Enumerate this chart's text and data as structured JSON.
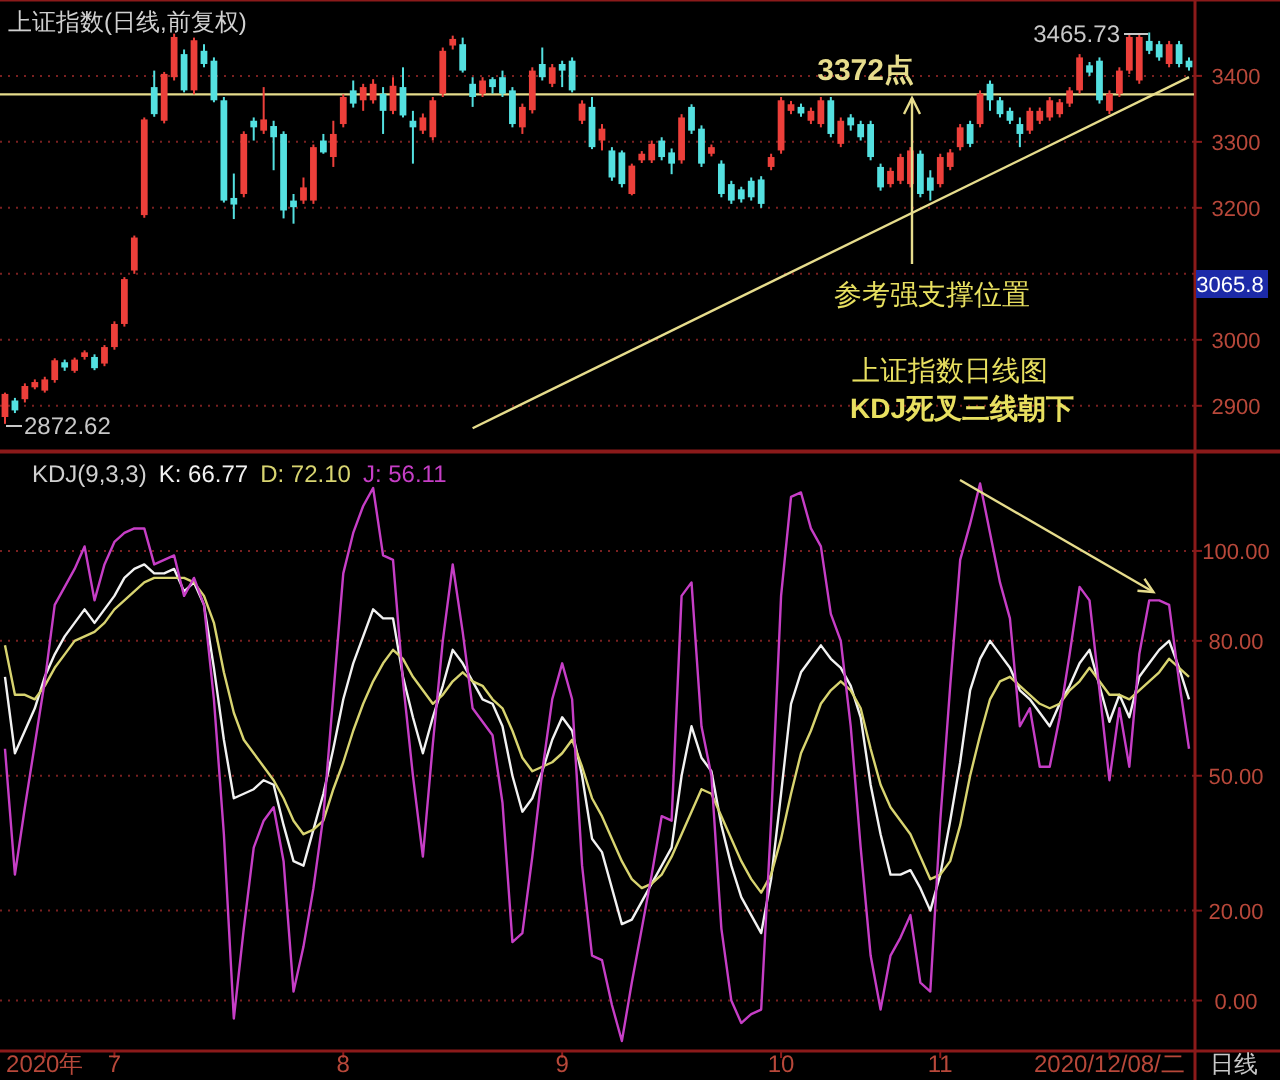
{
  "chart_data": [
    {
      "type": "candlestick",
      "title": "上证指数(日线,前复权)",
      "categories": [
        null,
        null,
        null,
        null,
        null,
        null,
        null,
        null,
        null,
        null,
        null,
        null,
        null,
        null,
        null,
        null,
        null,
        null,
        null,
        null,
        null,
        null,
        null,
        null,
        null,
        null,
        null,
        null,
        null,
        null,
        null,
        null,
        null,
        null,
        null,
        null,
        null,
        null,
        null,
        null,
        null,
        null,
        null,
        null,
        null,
        null,
        null,
        null,
        null,
        null,
        null,
        null,
        null,
        null,
        null,
        null,
        null,
        null,
        null,
        null,
        null,
        null,
        null,
        null,
        null,
        null,
        null,
        null,
        null,
        null,
        null,
        null,
        null,
        null,
        null,
        null,
        null,
        null,
        null,
        null,
        null,
        null,
        null,
        null,
        null,
        null,
        null,
        null,
        null,
        null,
        null,
        null,
        null,
        null,
        null,
        null,
        null,
        null,
        null,
        null,
        null,
        null,
        null,
        null,
        null,
        null,
        null,
        null,
        null,
        null,
        null,
        null,
        null,
        null,
        null,
        null,
        null,
        null,
        null,
        null
      ],
      "ohlc": [
        [
          2883,
          2920,
          2872.62,
          2918
        ],
        [
          2908,
          2912,
          2889,
          2893
        ],
        [
          2910,
          2934,
          2905,
          2930
        ],
        [
          2928,
          2940,
          2925,
          2936
        ],
        [
          2923,
          2944,
          2920,
          2940
        ],
        [
          2939,
          2972,
          2935,
          2969
        ],
        [
          2966,
          2970,
          2953,
          2958
        ],
        [
          2953,
          2973,
          2950,
          2970
        ],
        [
          2974,
          2984,
          2970,
          2981
        ],
        [
          2974,
          2978,
          2954,
          2957
        ],
        [
          2964,
          2992,
          2960,
          2989
        ],
        [
          2989,
          3028,
          2985,
          3024
        ],
        [
          3024,
          3095,
          3020,
          3092
        ],
        [
          3105,
          3158,
          3100,
          3155
        ],
        [
          3189,
          3337,
          3185,
          3334
        ],
        [
          3383,
          3408,
          3338,
          3342
        ],
        [
          3332,
          3406,
          3328,
          3403
        ],
        [
          3398,
          3464,
          3393,
          3459
        ],
        [
          3433,
          3440,
          3375,
          3378
        ],
        [
          3378,
          3458,
          3372,
          3454
        ],
        [
          3438,
          3448,
          3413,
          3418
        ],
        [
          3423,
          3428,
          3360,
          3363
        ],
        [
          3363,
          3368,
          3208,
          3211
        ],
        [
          3215,
          3252,
          3183,
          3205
        ],
        [
          3221,
          3316,
          3216,
          3312
        ],
        [
          3332,
          3337,
          3302,
          3322
        ],
        [
          3317,
          3383,
          3312,
          3334
        ],
        [
          3324,
          3332,
          3257,
          3307
        ],
        [
          3312,
          3316,
          3184,
          3196
        ],
        [
          3211,
          3221,
          3176,
          3201
        ],
        [
          3211,
          3246,
          3206,
          3231
        ],
        [
          3211,
          3296,
          3206,
          3292
        ],
        [
          3302,
          3312,
          3282,
          3284
        ],
        [
          3277,
          3332,
          3262,
          3312
        ],
        [
          3327,
          3372,
          3322,
          3368
        ],
        [
          3378,
          3393,
          3352,
          3358
        ],
        [
          3363,
          3388,
          3347,
          3383
        ],
        [
          3363,
          3395,
          3358,
          3388
        ],
        [
          3373,
          3383,
          3312,
          3347
        ],
        [
          3347,
          3398,
          3342,
          3385
        ],
        [
          3383,
          3413,
          3337,
          3340
        ],
        [
          3332,
          3347,
          3267,
          3322
        ],
        [
          3317,
          3343,
          3312,
          3337
        ],
        [
          3307,
          3368,
          3302,
          3363
        ],
        [
          3373,
          3443,
          3368,
          3438
        ],
        [
          3446,
          3461,
          3440,
          3456
        ],
        [
          3448,
          3458,
          3405,
          3408
        ],
        [
          3388,
          3398,
          3353,
          3368
        ],
        [
          3373,
          3398,
          3368,
          3393
        ],
        [
          3395,
          3398,
          3373,
          3383
        ],
        [
          3398,
          3408,
          3368,
          3373
        ],
        [
          3378,
          3383,
          3322,
          3327
        ],
        [
          3322,
          3358,
          3312,
          3353
        ],
        [
          3348,
          3413,
          3343,
          3408
        ],
        [
          3418,
          3443,
          3393,
          3398
        ],
        [
          3388,
          3418,
          3383,
          3413
        ],
        [
          3418,
          3423,
          3383,
          3408
        ],
        [
          3423,
          3428,
          3375,
          3378
        ],
        [
          3332,
          3363,
          3327,
          3358
        ],
        [
          3353,
          3368,
          3289,
          3292
        ],
        [
          3302,
          3327,
          3287,
          3320
        ],
        [
          3287,
          3292,
          3241,
          3246
        ],
        [
          3284,
          3287,
          3231,
          3236
        ],
        [
          3221,
          3267,
          3219,
          3264
        ],
        [
          3272,
          3286,
          3268,
          3282
        ],
        [
          3272,
          3302,
          3268,
          3297
        ],
        [
          3302,
          3307,
          3272,
          3277
        ],
        [
          3284,
          3290,
          3251,
          3267
        ],
        [
          3272,
          3342,
          3267,
          3337
        ],
        [
          3353,
          3357,
          3312,
          3317
        ],
        [
          3320,
          3325,
          3262,
          3267
        ],
        [
          3282,
          3296,
          3278,
          3292
        ],
        [
          3267,
          3272,
          3216,
          3221
        ],
        [
          3236,
          3241,
          3206,
          3211
        ],
        [
          3228,
          3232,
          3208,
          3213
        ],
        [
          3241,
          3246,
          3211,
          3216
        ],
        [
          3243,
          3248,
          3200,
          3206
        ],
        [
          3262,
          3282,
          3257,
          3277
        ],
        [
          3287,
          3368,
          3282,
          3363
        ],
        [
          3347,
          3362,
          3342,
          3357
        ],
        [
          3353,
          3358,
          3338,
          3343
        ],
        [
          3332,
          3352,
          3327,
          3347
        ],
        [
          3327,
          3368,
          3322,
          3363
        ],
        [
          3363,
          3368,
          3307,
          3312
        ],
        [
          3297,
          3337,
          3292,
          3332
        ],
        [
          3337,
          3342,
          3317,
          3325
        ],
        [
          3327,
          3332,
          3302,
          3307
        ],
        [
          3327,
          3332,
          3272,
          3277
        ],
        [
          3262,
          3267,
          3226,
          3231
        ],
        [
          3236,
          3261,
          3231,
          3256
        ],
        [
          3241,
          3282,
          3236,
          3277
        ],
        [
          3236,
          3292,
          3231,
          3287
        ],
        [
          3282,
          3287,
          3216,
          3221
        ],
        [
          3246,
          3257,
          3211,
          3226
        ],
        [
          3236,
          3282,
          3231,
          3277
        ],
        [
          3262,
          3289,
          3257,
          3284
        ],
        [
          3292,
          3327,
          3287,
          3322
        ],
        [
          3327,
          3332,
          3292,
          3297
        ],
        [
          3327,
          3378,
          3322,
          3373
        ],
        [
          3388,
          3393,
          3347,
          3363
        ],
        [
          3363,
          3368,
          3337,
          3342
        ],
        [
          3347,
          3352,
          3327,
          3332
        ],
        [
          3327,
          3337,
          3292,
          3312
        ],
        [
          3317,
          3352,
          3312,
          3347
        ],
        [
          3332,
          3352,
          3327,
          3347
        ],
        [
          3337,
          3368,
          3332,
          3363
        ],
        [
          3342,
          3365,
          3337,
          3360
        ],
        [
          3358,
          3383,
          3353,
          3378
        ],
        [
          3378,
          3433,
          3373,
          3428
        ],
        [
          3416,
          3421,
          3400,
          3405
        ],
        [
          3423,
          3428,
          3358,
          3363
        ],
        [
          3347,
          3378,
          3342,
          3373
        ],
        [
          3373,
          3413,
          3368,
          3408
        ],
        [
          3408,
          3464,
          3403,
          3459
        ],
        [
          3393,
          3464,
          3388,
          3459
        ],
        [
          3453,
          3465.73,
          3433,
          3438
        ],
        [
          3448,
          3453,
          3423,
          3428
        ],
        [
          3418,
          3453,
          3413,
          3448
        ],
        [
          3448,
          3453,
          3413,
          3418
        ],
        [
          3423,
          3428,
          3408,
          3413
        ]
      ],
      "series": [
        {
          "type": "line",
          "values": [
            null,
            null,
            null,
            null,
            null,
            null,
            null,
            null,
            null,
            null,
            null,
            null,
            null,
            null,
            null,
            null,
            null,
            null,
            null,
            null,
            null,
            null,
            null,
            null,
            null,
            null,
            null,
            null,
            null,
            null,
            null,
            null,
            null,
            null,
            null,
            null,
            null,
            null,
            null,
            null,
            null,
            null,
            null,
            null,
            null,
            null,
            null,
            2866,
            null,
            null,
            null,
            null,
            null,
            null,
            null,
            null,
            null,
            null,
            null,
            null,
            null,
            null,
            null,
            null,
            null,
            null,
            null,
            null,
            null,
            null,
            null,
            null,
            null,
            null,
            null,
            null,
            null,
            null,
            null,
            null,
            null,
            null,
            null,
            null,
            null,
            null,
            null,
            null,
            null,
            null,
            null,
            null,
            null,
            null,
            null,
            null,
            null,
            null,
            null,
            null,
            null,
            null,
            null,
            null,
            null,
            null,
            null,
            null,
            null,
            null,
            null,
            null,
            null,
            null,
            null,
            null,
            null,
            null,
            null,
            3398
          ],
          "color": "#e6dc8c"
        }
      ],
      "ylim": [
        2833,
        3515
      ],
      "yticks": [
        2900,
        3000,
        {
          "value": 3100,
          "label": null
        },
        3200,
        3300,
        3400
      ],
      "grid": "y",
      "tick_labels": "y",
      "ref_lines": [
        {
          "axis": "y",
          "value": 3372,
          "label": "3372点",
          "color": "#e6dc8c"
        }
      ],
      "annotations": [
        "3465.73",
        "2872.62",
        "参考强支撑位置",
        "上证指数日线图",
        "KDJ死叉三线朝下",
        "3065.8"
      ]
    },
    {
      "type": "line",
      "title": "KDJ(9,3,3)",
      "legend": "top left",
      "series": [
        {
          "name": "K: 66.77",
          "color": "#f2f2f2",
          "values": [
            72,
            55,
            60,
            65,
            72,
            77,
            81,
            84,
            87,
            84,
            87,
            90,
            94,
            96,
            97,
            95,
            95,
            96,
            91,
            93,
            88,
            74,
            58,
            45,
            46,
            47,
            49,
            48,
            39,
            31,
            30,
            38,
            46,
            56,
            67,
            75,
            81,
            87,
            85,
            85,
            72,
            63,
            55,
            63,
            70,
            78,
            75,
            71,
            67,
            66,
            61,
            50,
            42,
            45,
            51,
            58,
            63,
            60,
            50,
            36,
            33,
            25,
            17,
            18,
            22,
            26,
            30,
            34,
            50,
            61,
            54,
            51,
            39,
            30,
            23,
            19,
            15,
            27,
            46,
            66,
            73,
            76,
            79,
            76,
            74,
            70,
            63,
            48,
            37,
            28,
            28,
            29,
            25,
            20,
            28,
            40,
            53,
            69,
            76,
            80,
            77,
            74,
            69,
            67,
            64,
            61,
            66,
            70,
            75,
            78,
            70,
            62,
            68,
            63,
            72,
            75,
            78,
            80,
            74,
            67
          ]
        },
        {
          "name": "D: 72.10",
          "color": "#d8d470",
          "values": [
            79,
            68,
            68,
            67,
            70,
            74,
            77,
            80,
            81,
            82,
            84,
            87,
            89,
            91,
            93,
            94,
            94,
            94,
            94,
            93,
            90,
            84,
            73,
            64,
            58,
            55,
            52,
            49,
            45,
            40,
            37,
            38,
            40,
            47,
            53,
            60,
            66,
            71,
            75,
            78,
            76,
            72,
            69,
            66,
            68,
            71,
            73,
            71,
            70,
            67,
            65,
            60,
            54,
            51,
            52,
            53,
            55,
            58,
            52,
            45,
            41,
            36,
            31,
            27,
            25,
            26,
            28,
            32,
            37,
            42,
            47,
            46,
            41,
            36,
            31,
            27,
            24,
            28,
            36,
            46,
            55,
            60,
            66,
            69,
            71,
            69,
            65,
            56,
            48,
            43,
            40,
            37,
            32,
            27,
            28,
            31,
            39,
            50,
            59,
            67,
            71,
            72,
            70,
            68,
            66,
            65,
            66,
            69,
            71,
            74,
            71,
            68,
            68,
            67,
            69,
            71,
            73,
            76,
            74,
            72
          ]
        },
        {
          "name": "J: 56.11",
          "color": "#c63ec6",
          "values": [
            56,
            28,
            43,
            57,
            71,
            88,
            92,
            96,
            101,
            89,
            97,
            102,
            104,
            105,
            105,
            97,
            98,
            99,
            90,
            94,
            88,
            67,
            37,
            -4,
            16,
            34,
            40,
            43,
            31,
            2,
            12,
            25,
            41,
            68,
            95,
            104,
            110,
            114,
            99,
            98,
            71,
            50,
            32,
            57,
            80,
            97,
            82,
            65,
            62,
            59,
            44,
            13,
            15,
            32,
            51,
            67,
            75,
            67,
            30,
            10,
            9,
            -1,
            -9,
            4,
            16,
            28,
            41,
            40,
            90,
            93,
            61,
            50,
            16,
            0,
            -5,
            -3,
            -2,
            40,
            90,
            112,
            113,
            105,
            101,
            86,
            80,
            61,
            34,
            10,
            -2,
            10,
            14,
            19,
            4,
            2,
            40,
            70,
            98,
            106,
            115,
            104,
            93,
            85,
            61,
            65,
            52,
            52,
            63,
            77,
            92,
            89,
            69,
            49,
            65,
            52,
            77,
            89,
            89,
            88,
            71,
            56
          ]
        }
      ],
      "ylim": [
        -11,
        122
      ],
      "categories": [
        null,
        null,
        null,
        null,
        "2020年",
        null,
        null,
        null,
        null,
        null,
        null,
        "7",
        null,
        null,
        null,
        null,
        null,
        null,
        null,
        null,
        null,
        null,
        null,
        null,
        null,
        null,
        null,
        null,
        null,
        null,
        null,
        null,
        null,
        null,
        "8",
        null,
        null,
        null,
        null,
        null,
        null,
        null,
        null,
        null,
        null,
        null,
        null,
        null,
        null,
        null,
        null,
        null,
        null,
        null,
        null,
        null,
        "9",
        null,
        null,
        null,
        null,
        null,
        null,
        null,
        null,
        null,
        null,
        null,
        null,
        null,
        null,
        null,
        null,
        null,
        null,
        null,
        null,
        null,
        "10",
        null,
        null,
        null,
        null,
        null,
        null,
        null,
        null,
        null,
        null,
        null,
        null,
        null,
        null,
        null,
        "11",
        null,
        null,
        null,
        null,
        null,
        null,
        null,
        null,
        null,
        null,
        null,
        null,
        null,
        null,
        null,
        null,
        "2020/12/08/二",
        null,
        null,
        null,
        null,
        null,
        null,
        null,
        null
      ],
      "yticks": [
        {
          "value": 0,
          "label": "0.00"
        },
        {
          "value": 20,
          "label": "20.00"
        },
        {
          "value": 50,
          "label": "50.00"
        },
        {
          "value": 80,
          "label": "80.00"
        },
        {
          "value": 100,
          "label": "100.00"
        }
      ],
      "grid": "y",
      "annotations": [
        "日线"
      ]
    }
  ]
}
